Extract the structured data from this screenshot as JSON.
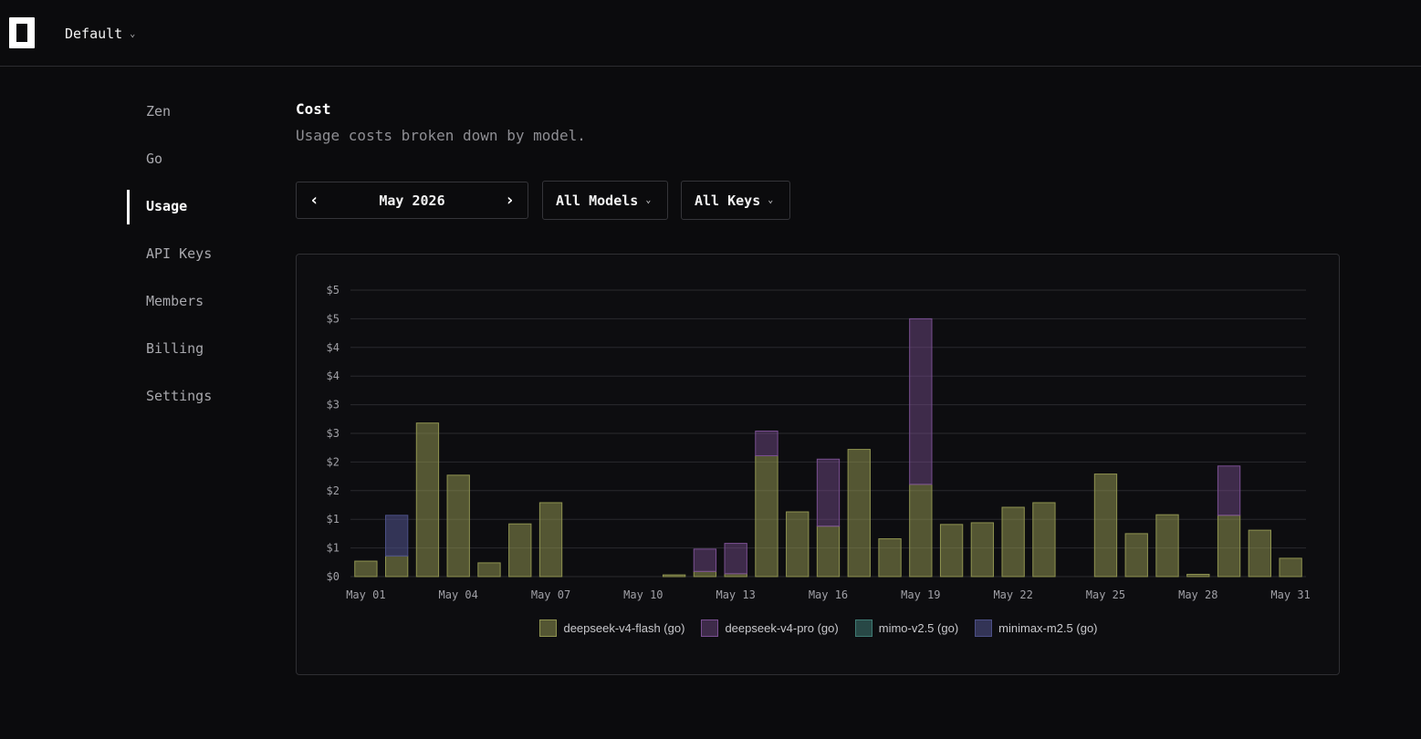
{
  "header": {
    "workspace": "Default",
    "chevron": "⌄"
  },
  "sidebar": {
    "items": [
      {
        "label": "Zen",
        "active": false
      },
      {
        "label": "Go",
        "active": false
      },
      {
        "label": "Usage",
        "active": true
      },
      {
        "label": "API Keys",
        "active": false
      },
      {
        "label": "Members",
        "active": false
      },
      {
        "label": "Billing",
        "active": false
      },
      {
        "label": "Settings",
        "active": false
      }
    ]
  },
  "main": {
    "title": "Cost",
    "subtitle": "Usage costs broken down by model.",
    "month": "May 2026",
    "prev_arrow": "‹",
    "next_arrow": "›",
    "models_filter": "All Models",
    "keys_filter": "All Keys"
  },
  "icons": {
    "logo": "logo-icon",
    "prev": "chevron-left-icon",
    "next": "chevron-right-icon",
    "dropdown": "chevron-down-icon"
  },
  "chart_data": {
    "type": "bar",
    "stacked": true,
    "ylim": [
      0,
      5
    ],
    "grid": true,
    "legend_position": "bottom",
    "y_tick_labels": [
      "$0",
      "$1",
      "$1",
      "$2",
      "$2",
      "$3",
      "$3",
      "$4",
      "$4",
      "$5",
      "$5"
    ],
    "categories": [
      "May 01",
      "May 02",
      "May 03",
      "May 04",
      "May 05",
      "May 06",
      "May 07",
      "May 08",
      "May 09",
      "May 10",
      "May 11",
      "May 12",
      "May 13",
      "May 14",
      "May 15",
      "May 16",
      "May 17",
      "May 18",
      "May 19",
      "May 20",
      "May 21",
      "May 22",
      "May 23",
      "May 24",
      "May 25",
      "May 26",
      "May 27",
      "May 28",
      "May 29",
      "May 30",
      "May 31"
    ],
    "x_tick_labels": [
      "May 01",
      "May 04",
      "May 07",
      "May 10",
      "May 13",
      "May 16",
      "May 19",
      "May 22",
      "May 25",
      "May 28",
      "May 31"
    ],
    "series": [
      {
        "name": "deepseek-v4-flash (go)",
        "color": "#8f9350",
        "fill": "rgba(143,147,80,0.55)",
        "values": [
          0.27,
          0.36,
          2.68,
          1.77,
          0.24,
          0.92,
          1.29,
          0,
          0,
          0,
          0.03,
          0.09,
          0.05,
          2.11,
          1.13,
          0.88,
          2.22,
          0.66,
          1.61,
          0.91,
          0.94,
          1.21,
          1.29,
          0,
          1.79,
          0.75,
          1.08,
          0.04,
          1.07,
          0.81,
          0.32
        ]
      },
      {
        "name": "deepseek-v4-pro (go)",
        "color": "#7a4f92",
        "fill": "rgba(122,79,146,0.45)",
        "values": [
          0,
          0,
          0,
          0,
          0,
          0,
          0,
          0,
          0,
          0,
          0,
          0.39,
          0.53,
          0.43,
          0,
          1.17,
          0,
          0,
          2.89,
          0,
          0,
          0,
          0,
          0,
          0,
          0,
          0,
          0,
          0.86,
          0,
          0
        ]
      },
      {
        "name": "mimo-v2.5 (go)",
        "color": "#3f7a73",
        "fill": "rgba(63,122,115,0.55)",
        "values": [
          0,
          0,
          0,
          0,
          0,
          0,
          0,
          0,
          0,
          0,
          0,
          0,
          0,
          0,
          0,
          0,
          0,
          0,
          0,
          0,
          0,
          0,
          0,
          0,
          0,
          0,
          0,
          0,
          0,
          0,
          0
        ]
      },
      {
        "name": "minimax-m2.5 (go)",
        "color": "#4c4f86",
        "fill": "rgba(76,79,134,0.6)",
        "values": [
          0,
          0.71,
          0,
          0,
          0,
          0,
          0,
          0,
          0,
          0,
          0,
          0,
          0,
          0,
          0,
          0,
          0,
          0,
          0,
          0,
          0,
          0,
          0,
          0,
          0,
          0,
          0,
          0,
          0,
          0,
          0
        ]
      }
    ]
  }
}
